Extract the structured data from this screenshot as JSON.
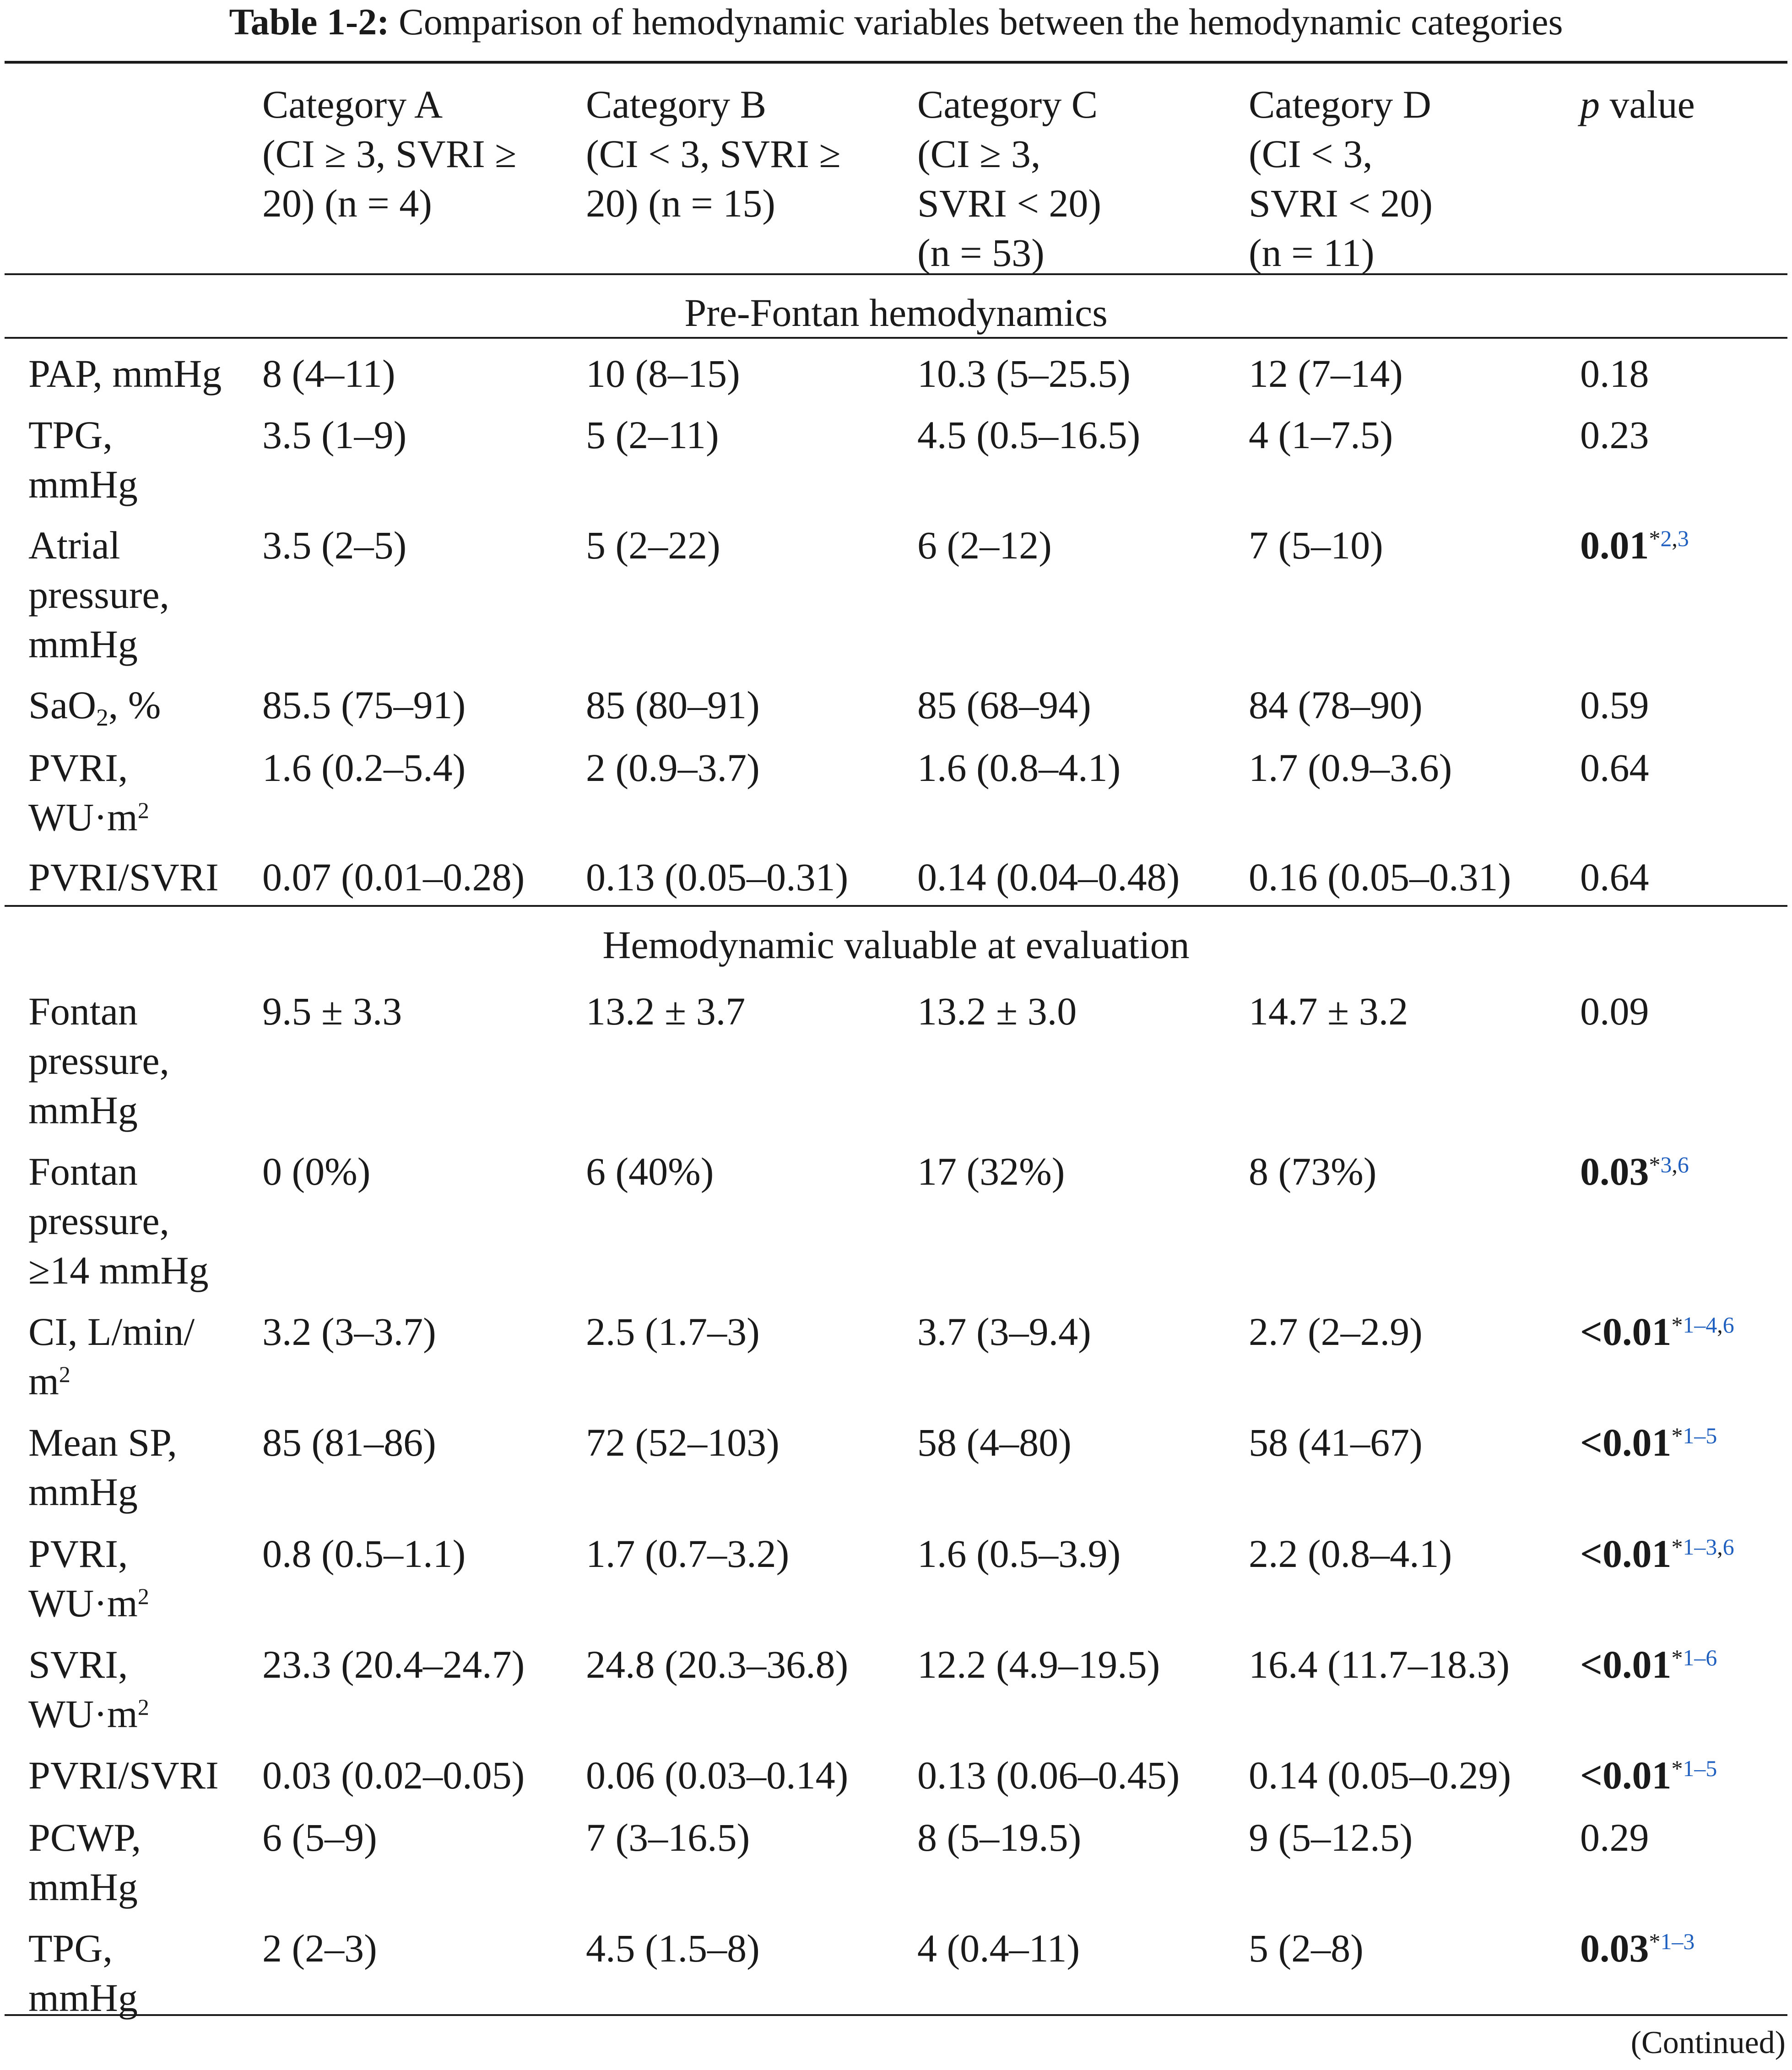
{
  "caption": {
    "label": "Table 1-2:",
    "text": "Comparison of hemodynamic variables between the hemodynamic categories"
  },
  "columns": [
    {
      "lines": [
        ""
      ]
    },
    {
      "lines": [
        "Category A",
        "(CI ≥ 3, SVRI ≥",
        "20) (n = 4)"
      ]
    },
    {
      "lines": [
        "Category B",
        "(CI < 3, SVRI ≥",
        "20) (n = 15)"
      ]
    },
    {
      "lines": [
        "Category C",
        "(CI ≥ 3,",
        "SVRI < 20)",
        "(n = 53)"
      ]
    },
    {
      "lines": [
        "Category D",
        "(CI < 3,",
        "SVRI < 20)",
        "(n = 11)"
      ]
    },
    {
      "italic": "p",
      "text": " value"
    }
  ],
  "sections": [
    {
      "title": "Pre-Fontan hemodynamics",
      "rows": [
        {
          "label": [
            "PAP, mmHg"
          ],
          "values": [
            "8 (4–11)",
            "10 (8–15)",
            "10.3 (5–25.5)",
            "12 (7–14)"
          ],
          "p": "0.18"
        },
        {
          "label": [
            "TPG,",
            "mmHg"
          ],
          "values": [
            "3.5 (1–9)",
            "5 (2–11)",
            "4.5 (0.5–16.5)",
            "4 (1–7.5)"
          ],
          "p": "0.23"
        },
        {
          "label": [
            "Atrial",
            "pressure,",
            "mmHg"
          ],
          "values": [
            "3.5 (2–5)",
            "5 (2–22)",
            "6 (2–12)",
            "7 (5–10)"
          ],
          "p": "0.01",
          "p_bold": true,
          "p_star": "*",
          "p_refs": [
            "2",
            ",",
            "3"
          ]
        },
        {
          "label": [
            "SaO₂, %"
          ],
          "label_sub": {
            "base": "SaO",
            "sub": "2",
            "tail": ", %"
          },
          "values": [
            "85.5 (75–91)",
            "85 (80–91)",
            "85 (68–94)",
            "84 (78–90)"
          ],
          "p": "0.59"
        },
        {
          "label": [
            "PVRI,",
            "WU·m²"
          ],
          "label_sup": {
            "line": 1,
            "base": "WU·m",
            "sup": "2"
          },
          "values": [
            "1.6 (0.2–5.4)",
            "2 (0.9–3.7)",
            "1.6 (0.8–4.1)",
            "1.7 (0.9–3.6)"
          ],
          "p": "0.64"
        },
        {
          "label": [
            "PVRI/SVRI"
          ],
          "values": [
            "0.07 (0.01–0.28)",
            "0.13 (0.05–0.31)",
            "0.14 (0.04–0.48)",
            "0.16 (0.05–0.31)"
          ],
          "p": "0.64"
        }
      ]
    },
    {
      "title": "Hemodynamic valuable at evaluation",
      "rows": [
        {
          "label": [
            "Fontan",
            "pressure,",
            "mmHg"
          ],
          "values": [
            "9.5 ± 3.3",
            "13.2 ± 3.7",
            "13.2 ± 3.0",
            "14.7 ± 3.2"
          ],
          "p": "0.09"
        },
        {
          "label": [
            "Fontan",
            "pressure,",
            "≥14 mmHg"
          ],
          "values": [
            "0 (0%)",
            "6 (40%)",
            "17 (32%)",
            "8 (73%)"
          ],
          "p": "0.03",
          "p_bold": true,
          "p_star": "*",
          "p_refs": [
            "3",
            ",",
            "6"
          ]
        },
        {
          "label": [
            "CI, L/min/",
            "m²"
          ],
          "label_sup": {
            "line": 1,
            "base": "m",
            "sup": "2"
          },
          "values": [
            "3.2 (3–3.7)",
            "2.5 (1.7–3)",
            "3.7 (3–9.4)",
            "2.7 (2–2.9)"
          ],
          "p": "<0.01",
          "p_bold": true,
          "p_star": "*",
          "p_refs": [
            "1–4",
            ",",
            "6"
          ]
        },
        {
          "label": [
            "Mean SP,",
            "mmHg"
          ],
          "values": [
            "85 (81–86)",
            "72 (52–103)",
            "58 (4–80)",
            "58 (41–67)"
          ],
          "p": "<0.01",
          "p_bold": true,
          "p_star": "*",
          "p_refs": [
            "1–5"
          ]
        },
        {
          "label": [
            "PVRI,",
            "WU·m²"
          ],
          "label_sup": {
            "line": 1,
            "base": "WU·m",
            "sup": "2"
          },
          "values": [
            "0.8 (0.5–1.1)",
            "1.7 (0.7–3.2)",
            "1.6 (0.5–3.9)",
            "2.2 (0.8–4.1)"
          ],
          "p": "<0.01",
          "p_bold": true,
          "p_star": "*",
          "p_refs": [
            "1–3",
            ",",
            "6"
          ]
        },
        {
          "label": [
            "SVRI,",
            "WU·m²"
          ],
          "label_sup": {
            "line": 1,
            "base": "WU·m",
            "sup": "2"
          },
          "values": [
            "23.3 (20.4–24.7)",
            "24.8 (20.3–36.8)",
            "12.2 (4.9–19.5)",
            "16.4 (11.7–18.3)"
          ],
          "p": "<0.01",
          "p_bold": true,
          "p_star": "*",
          "p_refs": [
            "1–6"
          ]
        },
        {
          "label": [
            "PVRI/SVRI"
          ],
          "values": [
            "0.03 (0.02–0.05)",
            "0.06 (0.03–0.14)",
            "0.13 (0.06–0.45)",
            "0.14 (0.05–0.29)"
          ],
          "p": "<0.01",
          "p_bold": true,
          "p_star": "*",
          "p_refs": [
            "1–5"
          ]
        },
        {
          "label": [
            "PCWP,",
            "mmHg"
          ],
          "values": [
            "6 (5–9)",
            "7 (3–16.5)",
            "8 (5–19.5)",
            "9 (5–12.5)"
          ],
          "p": "0.29"
        },
        {
          "label": [
            "TPG,",
            "mmHg"
          ],
          "values": [
            "2 (2–3)",
            "4.5 (1.5–8)",
            "4 (0.4–11)",
            "5 (2–8)"
          ],
          "p": "0.03",
          "p_bold": true,
          "p_star": "*",
          "p_refs": [
            "1–3"
          ]
        }
      ]
    }
  ],
  "footer": {
    "continued": "(Continued)"
  }
}
